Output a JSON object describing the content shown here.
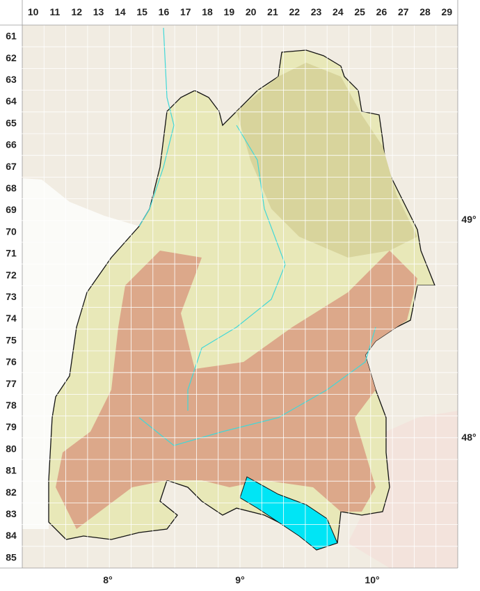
{
  "grid": {
    "columns": [
      "10",
      "11",
      "12",
      "13",
      "14",
      "15",
      "16",
      "17",
      "18",
      "19",
      "20",
      "21",
      "22",
      "23",
      "24",
      "25",
      "26",
      "27",
      "28",
      "29"
    ],
    "rows": [
      "61",
      "62",
      "63",
      "64",
      "65",
      "66",
      "67",
      "68",
      "69",
      "70",
      "71",
      "72",
      "73",
      "74",
      "75",
      "76",
      "77",
      "78",
      "79",
      "80",
      "81",
      "82",
      "83",
      "84",
      "85"
    ]
  },
  "longitude_labels": [
    "8°",
    "9°",
    "10°"
  ],
  "latitude_labels": [
    "49°",
    "48°"
  ],
  "colors": {
    "lake": "#00e5f5",
    "lowland": "#e8e8b8",
    "hills": "#d8d49c",
    "highland": "#dca88a",
    "outside": "#f1ece2",
    "rivers": "#40d8d8",
    "grid": "#ffffff"
  }
}
